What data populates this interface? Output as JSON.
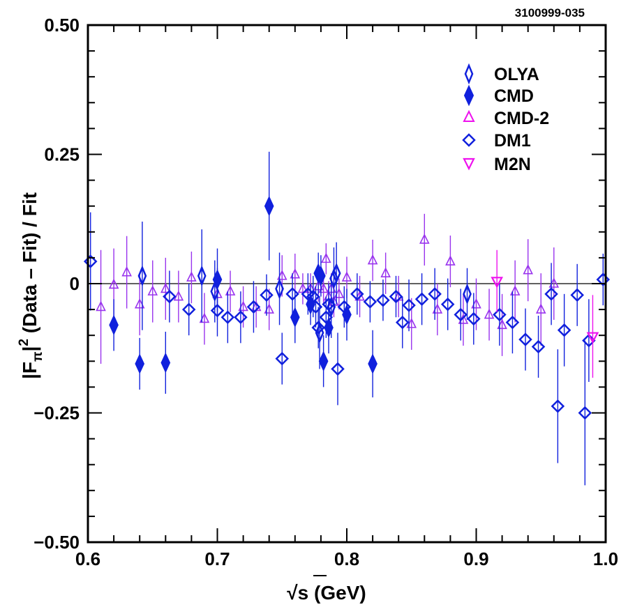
{
  "chart_data": {
    "type": "scatter",
    "figure_id": "3100999-035",
    "ylabel": "|F_π|^2 (Data – Fit) / Fit",
    "ylabel_parts": {
      "pre": "|F",
      "sub": "π",
      "mid": "|",
      "sup": "2",
      "post": " (Data – Fit) / Fit"
    },
    "xlabel": "√s (GeV)",
    "xlabel_parts": {
      "radical": "√",
      "rest": "s (GeV)"
    },
    "xlim": [
      0.6,
      1.0
    ],
    "ylim": [
      -0.5,
      0.5
    ],
    "x_ticks": [
      {
        "value": 0.6,
        "label": "0.6"
      },
      {
        "value": 0.7,
        "label": "0.7"
      },
      {
        "value": 0.8,
        "label": "0.8"
      },
      {
        "value": 0.9,
        "label": "0.9"
      },
      {
        "value": 1.0,
        "label": "1.0"
      }
    ],
    "y_ticks": [
      {
        "value": 0.5,
        "label": "0.50"
      },
      {
        "value": 0.25,
        "label": "0.25"
      },
      {
        "value": 0.0,
        "label": "0"
      },
      {
        "value": -0.25,
        "label": "−0.25"
      },
      {
        "value": -0.5,
        "label": "−0.50"
      }
    ],
    "reference_line": 0,
    "legend_position": "top-right",
    "colors": {
      "blue": "#1020dd",
      "purple": "#9933ee",
      "magenta": "#ee11ee"
    },
    "series": [
      {
        "name": "OLYA",
        "marker": "thin-diamond-open",
        "color": "#1020dd",
        "points": [
          {
            "x": 0.642,
            "y": 0.015,
            "err": 0.105
          },
          {
            "x": 0.688,
            "y": 0.015,
            "err": 0.09
          },
          {
            "x": 0.698,
            "y": -0.015,
            "err": 0.06
          },
          {
            "x": 0.748,
            "y": -0.01,
            "err": 0.07
          },
          {
            "x": 0.779,
            "y": -0.095,
            "err": 0.07
          },
          {
            "x": 0.788,
            "y": -0.045,
            "err": 0.06
          },
          {
            "x": 0.79,
            "y": 0.01,
            "err": 0.06
          },
          {
            "x": 0.792,
            "y": 0.02,
            "err": 0.06
          },
          {
            "x": 0.893,
            "y": -0.02,
            "err": 0.05
          }
        ]
      },
      {
        "name": "CMD",
        "marker": "thin-diamond-filled",
        "color": "#1020dd",
        "points": [
          {
            "x": 0.62,
            "y": -0.08,
            "err": 0.05
          },
          {
            "x": 0.64,
            "y": -0.155,
            "err": 0.05
          },
          {
            "x": 0.66,
            "y": -0.153,
            "err": 0.06
          },
          {
            "x": 0.7,
            "y": 0.008,
            "err": 0.06
          },
          {
            "x": 0.74,
            "y": 0.15,
            "err": 0.105
          },
          {
            "x": 0.76,
            "y": -0.065,
            "err": 0.05
          },
          {
            "x": 0.772,
            "y": -0.04,
            "err": 0.04
          },
          {
            "x": 0.778,
            "y": 0.02,
            "err": 0.04
          },
          {
            "x": 0.78,
            "y": 0.015,
            "err": 0.04
          },
          {
            "x": 0.782,
            "y": -0.15,
            "err": 0.05
          },
          {
            "x": 0.786,
            "y": -0.085,
            "err": 0.05
          },
          {
            "x": 0.8,
            "y": -0.06,
            "err": 0.05
          },
          {
            "x": 0.82,
            "y": -0.155,
            "err": 0.065
          }
        ]
      },
      {
        "name": "CMD-2",
        "marker": "triangle-up-open",
        "color": "#9933ee",
        "points": [
          {
            "x": 0.61,
            "y": -0.045,
            "err": 0.11
          },
          {
            "x": 0.62,
            "y": -0.002,
            "err": 0.07
          },
          {
            "x": 0.63,
            "y": 0.022,
            "err": 0.07
          },
          {
            "x": 0.64,
            "y": -0.04,
            "err": 0.06
          },
          {
            "x": 0.65,
            "y": -0.015,
            "err": 0.06
          },
          {
            "x": 0.66,
            "y": -0.01,
            "err": 0.06
          },
          {
            "x": 0.67,
            "y": -0.025,
            "err": 0.05
          },
          {
            "x": 0.68,
            "y": 0.012,
            "err": 0.05
          },
          {
            "x": 0.69,
            "y": -0.068,
            "err": 0.05
          },
          {
            "x": 0.7,
            "y": -0.02,
            "err": 0.05
          },
          {
            "x": 0.71,
            "y": -0.015,
            "err": 0.04
          },
          {
            "x": 0.72,
            "y": -0.045,
            "err": 0.04
          },
          {
            "x": 0.73,
            "y": -0.045,
            "err": 0.04
          },
          {
            "x": 0.74,
            "y": -0.05,
            "err": 0.04
          },
          {
            "x": 0.75,
            "y": 0.015,
            "err": 0.04
          },
          {
            "x": 0.76,
            "y": 0.018,
            "err": 0.04
          },
          {
            "x": 0.766,
            "y": -0.01,
            "err": 0.03
          },
          {
            "x": 0.772,
            "y": -0.01,
            "err": 0.03
          },
          {
            "x": 0.778,
            "y": -0.005,
            "err": 0.03
          },
          {
            "x": 0.782,
            "y": -0.01,
            "err": 0.03
          },
          {
            "x": 0.784,
            "y": 0.048,
            "err": 0.03
          },
          {
            "x": 0.786,
            "y": -0.025,
            "err": 0.03
          },
          {
            "x": 0.788,
            "y": -0.01,
            "err": 0.03
          },
          {
            "x": 0.79,
            "y": -0.035,
            "err": 0.03
          },
          {
            "x": 0.794,
            "y": -0.02,
            "err": 0.03
          },
          {
            "x": 0.8,
            "y": 0.012,
            "err": 0.04
          },
          {
            "x": 0.81,
            "y": -0.025,
            "err": 0.04
          },
          {
            "x": 0.82,
            "y": 0.045,
            "err": 0.04
          },
          {
            "x": 0.83,
            "y": 0.02,
            "err": 0.04
          },
          {
            "x": 0.84,
            "y": -0.025,
            "err": 0.04
          },
          {
            "x": 0.85,
            "y": -0.078,
            "err": 0.05
          },
          {
            "x": 0.86,
            "y": 0.085,
            "err": 0.05
          },
          {
            "x": 0.87,
            "y": -0.05,
            "err": 0.05
          },
          {
            "x": 0.88,
            "y": 0.043,
            "err": 0.05
          },
          {
            "x": 0.89,
            "y": -0.07,
            "err": 0.05
          },
          {
            "x": 0.9,
            "y": -0.04,
            "err": 0.05
          },
          {
            "x": 0.91,
            "y": -0.06,
            "err": 0.05
          },
          {
            "x": 0.92,
            "y": -0.08,
            "err": 0.06
          },
          {
            "x": 0.93,
            "y": -0.015,
            "err": 0.06
          },
          {
            "x": 0.94,
            "y": 0.026,
            "err": 0.06
          },
          {
            "x": 0.95,
            "y": -0.05,
            "err": 0.07
          },
          {
            "x": 0.96,
            "y": 0.0,
            "err": 0.07
          }
        ]
      },
      {
        "name": "DM1",
        "marker": "diamond-open",
        "color": "#1020dd",
        "points": [
          {
            "x": 0.602,
            "y": 0.043,
            "err": 0.095
          },
          {
            "x": 0.663,
            "y": -0.025,
            "err": 0.05
          },
          {
            "x": 0.678,
            "y": -0.05,
            "err": 0.05
          },
          {
            "x": 0.7,
            "y": -0.052,
            "err": 0.05
          },
          {
            "x": 0.708,
            "y": -0.065,
            "err": 0.05
          },
          {
            "x": 0.718,
            "y": -0.065,
            "err": 0.05
          },
          {
            "x": 0.728,
            "y": -0.045,
            "err": 0.05
          },
          {
            "x": 0.738,
            "y": -0.022,
            "err": 0.04
          },
          {
            "x": 0.75,
            "y": -0.145,
            "err": 0.05
          },
          {
            "x": 0.758,
            "y": -0.02,
            "err": 0.04
          },
          {
            "x": 0.77,
            "y": -0.02,
            "err": 0.04
          },
          {
            "x": 0.774,
            "y": -0.025,
            "err": 0.04
          },
          {
            "x": 0.776,
            "y": -0.045,
            "err": 0.04
          },
          {
            "x": 0.778,
            "y": -0.085,
            "err": 0.04
          },
          {
            "x": 0.784,
            "y": -0.065,
            "err": 0.04
          },
          {
            "x": 0.786,
            "y": -0.04,
            "err": 0.04
          },
          {
            "x": 0.793,
            "y": -0.165,
            "err": 0.07
          },
          {
            "x": 0.798,
            "y": -0.045,
            "err": 0.04
          },
          {
            "x": 0.808,
            "y": -0.02,
            "err": 0.04
          },
          {
            "x": 0.818,
            "y": -0.035,
            "err": 0.04
          },
          {
            "x": 0.828,
            "y": -0.032,
            "err": 0.04
          },
          {
            "x": 0.838,
            "y": -0.025,
            "err": 0.04
          },
          {
            "x": 0.843,
            "y": -0.075,
            "err": 0.05
          },
          {
            "x": 0.848,
            "y": -0.042,
            "err": 0.05
          },
          {
            "x": 0.858,
            "y": -0.03,
            "err": 0.05
          },
          {
            "x": 0.868,
            "y": -0.02,
            "err": 0.05
          },
          {
            "x": 0.878,
            "y": -0.04,
            "err": 0.05
          },
          {
            "x": 0.888,
            "y": -0.06,
            "err": 0.05
          },
          {
            "x": 0.898,
            "y": -0.068,
            "err": 0.05
          },
          {
            "x": 0.918,
            "y": -0.06,
            "err": 0.06
          },
          {
            "x": 0.928,
            "y": -0.075,
            "err": 0.06
          },
          {
            "x": 0.938,
            "y": -0.108,
            "err": 0.06
          },
          {
            "x": 0.948,
            "y": -0.122,
            "err": 0.06
          },
          {
            "x": 0.958,
            "y": -0.02,
            "err": 0.06
          },
          {
            "x": 0.963,
            "y": -0.237,
            "err": 0.11
          },
          {
            "x": 0.968,
            "y": -0.09,
            "err": 0.07
          },
          {
            "x": 0.978,
            "y": -0.022,
            "err": 0.06
          },
          {
            "x": 0.984,
            "y": -0.25,
            "err": 0.14
          },
          {
            "x": 0.987,
            "y": -0.11,
            "err": 0.08
          },
          {
            "x": 0.998,
            "y": 0.008,
            "err": 0.05
          }
        ]
      },
      {
        "name": "M2N",
        "marker": "triangle-down-open",
        "color": "#ee11ee",
        "points": [
          {
            "x": 0.916,
            "y": 0.005,
            "err": 0.06
          },
          {
            "x": 0.99,
            "y": -0.102,
            "err": 0.08
          }
        ]
      }
    ]
  }
}
